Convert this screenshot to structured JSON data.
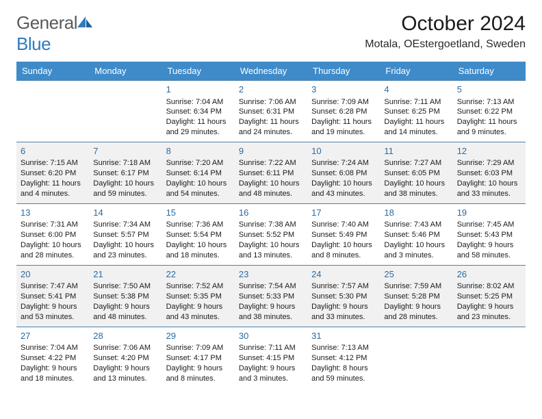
{
  "brand": {
    "part1": "General",
    "part2": "Blue"
  },
  "title": "October 2024",
  "location": "Motala, OEstergoetland, Sweden",
  "colors": {
    "header_bg": "#3f8bca",
    "header_fg": "#ffffff",
    "row_border": "#4a7fa8",
    "alt_bg": "#f1f1f1",
    "daynum_color": "#2b6aa0",
    "text_color": "#1a1a1a",
    "brand_gray": "#5a5a5a",
    "brand_blue": "#2e7bbf"
  },
  "daysOfWeek": [
    "Sunday",
    "Monday",
    "Tuesday",
    "Wednesday",
    "Thursday",
    "Friday",
    "Saturday"
  ],
  "weeks": [
    {
      "alt": false,
      "cells": [
        {
          "blank": true
        },
        {
          "blank": true
        },
        {
          "day": "1",
          "sunrise": "Sunrise: 7:04 AM",
          "sunset": "Sunset: 6:34 PM",
          "daylight": "Daylight: 11 hours and 29 minutes."
        },
        {
          "day": "2",
          "sunrise": "Sunrise: 7:06 AM",
          "sunset": "Sunset: 6:31 PM",
          "daylight": "Daylight: 11 hours and 24 minutes."
        },
        {
          "day": "3",
          "sunrise": "Sunrise: 7:09 AM",
          "sunset": "Sunset: 6:28 PM",
          "daylight": "Daylight: 11 hours and 19 minutes."
        },
        {
          "day": "4",
          "sunrise": "Sunrise: 7:11 AM",
          "sunset": "Sunset: 6:25 PM",
          "daylight": "Daylight: 11 hours and 14 minutes."
        },
        {
          "day": "5",
          "sunrise": "Sunrise: 7:13 AM",
          "sunset": "Sunset: 6:22 PM",
          "daylight": "Daylight: 11 hours and 9 minutes."
        }
      ]
    },
    {
      "alt": true,
      "cells": [
        {
          "day": "6",
          "sunrise": "Sunrise: 7:15 AM",
          "sunset": "Sunset: 6:20 PM",
          "daylight": "Daylight: 11 hours and 4 minutes."
        },
        {
          "day": "7",
          "sunrise": "Sunrise: 7:18 AM",
          "sunset": "Sunset: 6:17 PM",
          "daylight": "Daylight: 10 hours and 59 minutes."
        },
        {
          "day": "8",
          "sunrise": "Sunrise: 7:20 AM",
          "sunset": "Sunset: 6:14 PM",
          "daylight": "Daylight: 10 hours and 54 minutes."
        },
        {
          "day": "9",
          "sunrise": "Sunrise: 7:22 AM",
          "sunset": "Sunset: 6:11 PM",
          "daylight": "Daylight: 10 hours and 48 minutes."
        },
        {
          "day": "10",
          "sunrise": "Sunrise: 7:24 AM",
          "sunset": "Sunset: 6:08 PM",
          "daylight": "Daylight: 10 hours and 43 minutes."
        },
        {
          "day": "11",
          "sunrise": "Sunrise: 7:27 AM",
          "sunset": "Sunset: 6:05 PM",
          "daylight": "Daylight: 10 hours and 38 minutes."
        },
        {
          "day": "12",
          "sunrise": "Sunrise: 7:29 AM",
          "sunset": "Sunset: 6:03 PM",
          "daylight": "Daylight: 10 hours and 33 minutes."
        }
      ]
    },
    {
      "alt": false,
      "cells": [
        {
          "day": "13",
          "sunrise": "Sunrise: 7:31 AM",
          "sunset": "Sunset: 6:00 PM",
          "daylight": "Daylight: 10 hours and 28 minutes."
        },
        {
          "day": "14",
          "sunrise": "Sunrise: 7:34 AM",
          "sunset": "Sunset: 5:57 PM",
          "daylight": "Daylight: 10 hours and 23 minutes."
        },
        {
          "day": "15",
          "sunrise": "Sunrise: 7:36 AM",
          "sunset": "Sunset: 5:54 PM",
          "daylight": "Daylight: 10 hours and 18 minutes."
        },
        {
          "day": "16",
          "sunrise": "Sunrise: 7:38 AM",
          "sunset": "Sunset: 5:52 PM",
          "daylight": "Daylight: 10 hours and 13 minutes."
        },
        {
          "day": "17",
          "sunrise": "Sunrise: 7:40 AM",
          "sunset": "Sunset: 5:49 PM",
          "daylight": "Daylight: 10 hours and 8 minutes."
        },
        {
          "day": "18",
          "sunrise": "Sunrise: 7:43 AM",
          "sunset": "Sunset: 5:46 PM",
          "daylight": "Daylight: 10 hours and 3 minutes."
        },
        {
          "day": "19",
          "sunrise": "Sunrise: 7:45 AM",
          "sunset": "Sunset: 5:43 PM",
          "daylight": "Daylight: 9 hours and 58 minutes."
        }
      ]
    },
    {
      "alt": true,
      "cells": [
        {
          "day": "20",
          "sunrise": "Sunrise: 7:47 AM",
          "sunset": "Sunset: 5:41 PM",
          "daylight": "Daylight: 9 hours and 53 minutes."
        },
        {
          "day": "21",
          "sunrise": "Sunrise: 7:50 AM",
          "sunset": "Sunset: 5:38 PM",
          "daylight": "Daylight: 9 hours and 48 minutes."
        },
        {
          "day": "22",
          "sunrise": "Sunrise: 7:52 AM",
          "sunset": "Sunset: 5:35 PM",
          "daylight": "Daylight: 9 hours and 43 minutes."
        },
        {
          "day": "23",
          "sunrise": "Sunrise: 7:54 AM",
          "sunset": "Sunset: 5:33 PM",
          "daylight": "Daylight: 9 hours and 38 minutes."
        },
        {
          "day": "24",
          "sunrise": "Sunrise: 7:57 AM",
          "sunset": "Sunset: 5:30 PM",
          "daylight": "Daylight: 9 hours and 33 minutes."
        },
        {
          "day": "25",
          "sunrise": "Sunrise: 7:59 AM",
          "sunset": "Sunset: 5:28 PM",
          "daylight": "Daylight: 9 hours and 28 minutes."
        },
        {
          "day": "26",
          "sunrise": "Sunrise: 8:02 AM",
          "sunset": "Sunset: 5:25 PM",
          "daylight": "Daylight: 9 hours and 23 minutes."
        }
      ]
    },
    {
      "alt": false,
      "cells": [
        {
          "day": "27",
          "sunrise": "Sunrise: 7:04 AM",
          "sunset": "Sunset: 4:22 PM",
          "daylight": "Daylight: 9 hours and 18 minutes."
        },
        {
          "day": "28",
          "sunrise": "Sunrise: 7:06 AM",
          "sunset": "Sunset: 4:20 PM",
          "daylight": "Daylight: 9 hours and 13 minutes."
        },
        {
          "day": "29",
          "sunrise": "Sunrise: 7:09 AM",
          "sunset": "Sunset: 4:17 PM",
          "daylight": "Daylight: 9 hours and 8 minutes."
        },
        {
          "day": "30",
          "sunrise": "Sunrise: 7:11 AM",
          "sunset": "Sunset: 4:15 PM",
          "daylight": "Daylight: 9 hours and 3 minutes."
        },
        {
          "day": "31",
          "sunrise": "Sunrise: 7:13 AM",
          "sunset": "Sunset: 4:12 PM",
          "daylight": "Daylight: 8 hours and 59 minutes."
        },
        {
          "blank": true
        },
        {
          "blank": true
        }
      ]
    }
  ]
}
